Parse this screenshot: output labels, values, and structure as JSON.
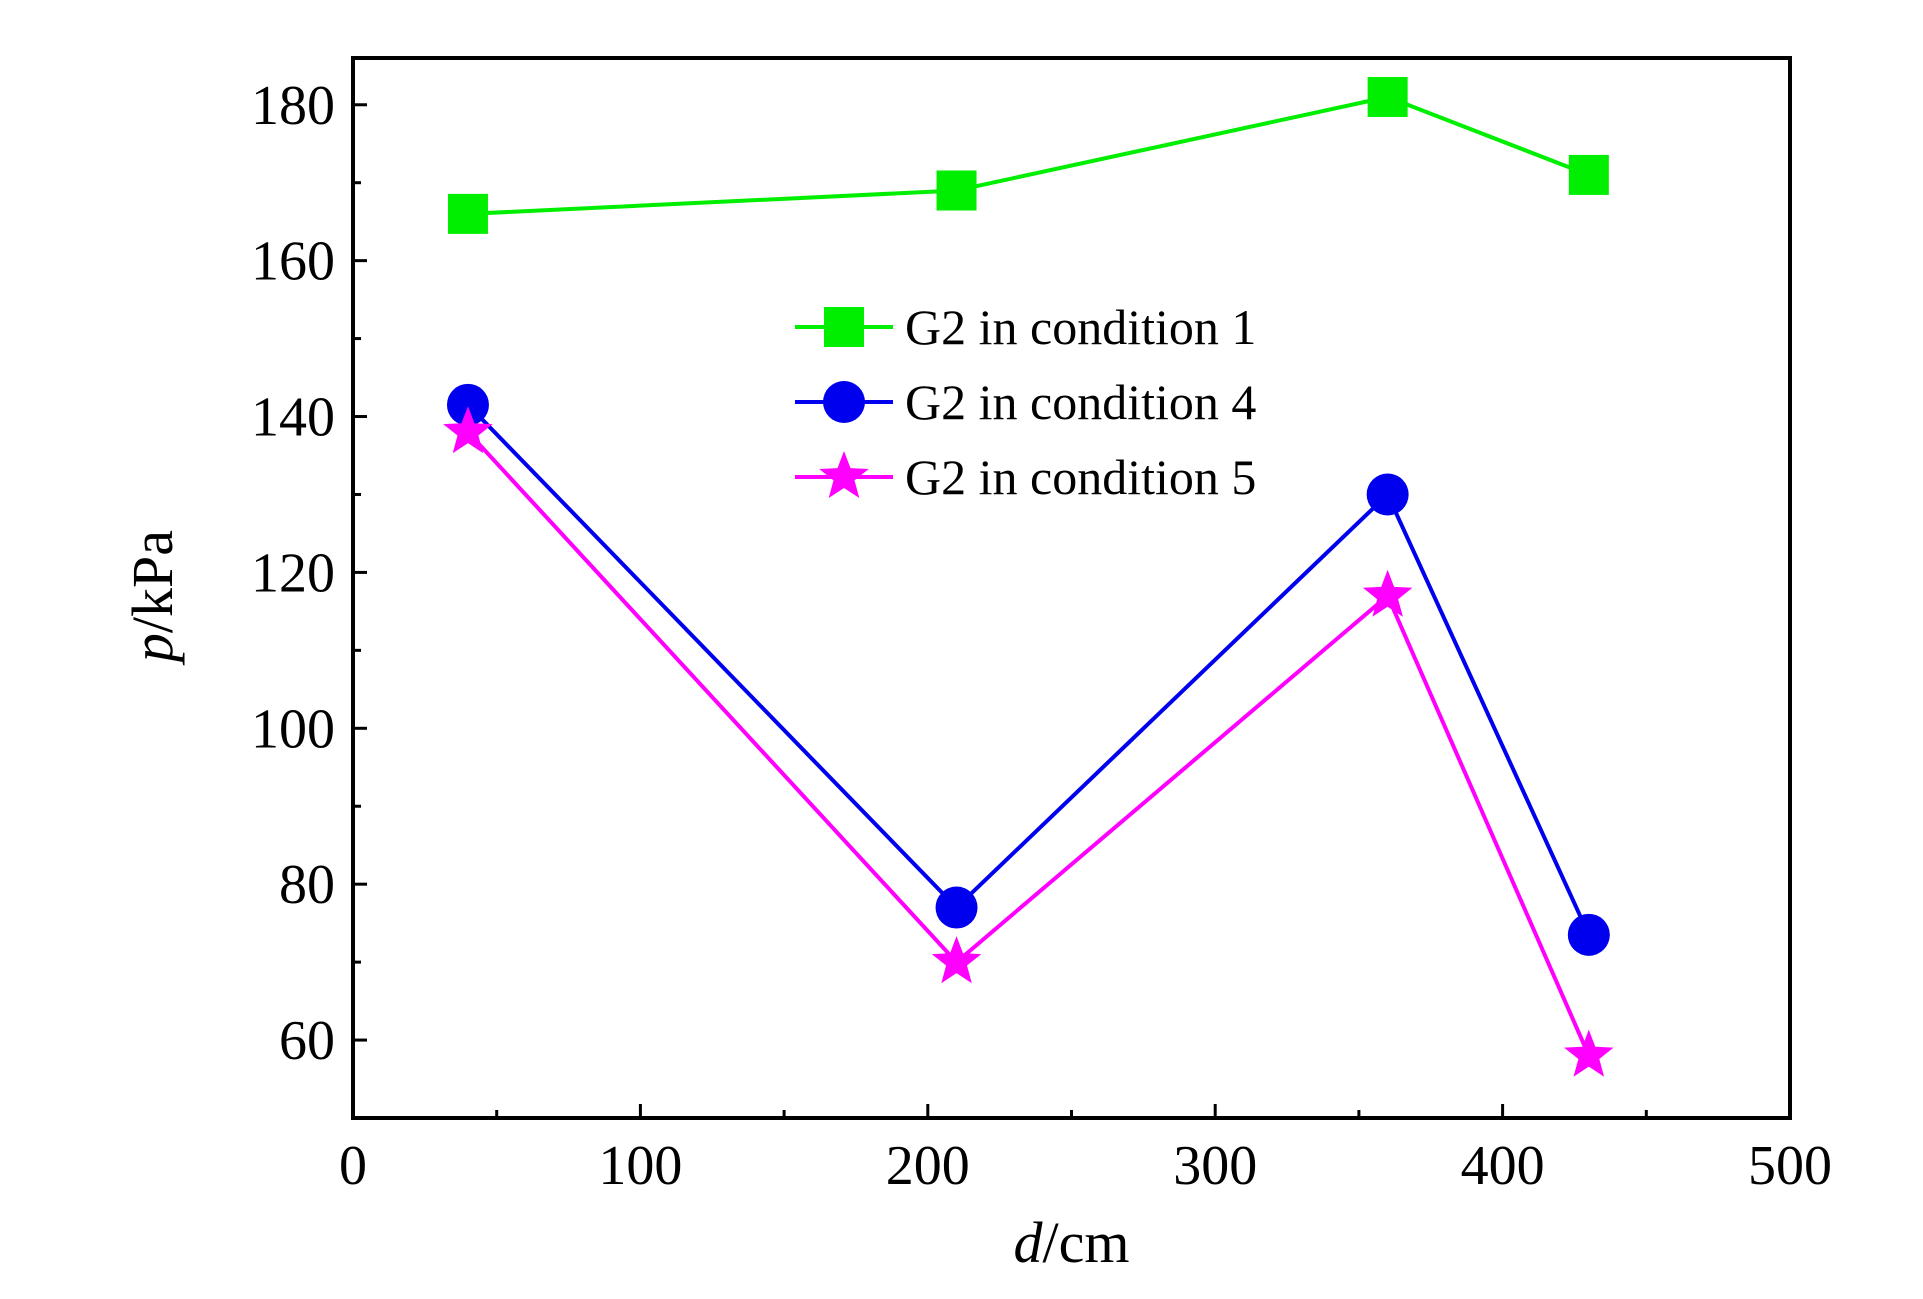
{
  "chart_data": {
    "type": "line",
    "xlabel": {
      "italic": "d",
      "rest": "/cm"
    },
    "ylabel": {
      "italic": "p",
      "rest": "/kPa"
    },
    "xlim": [
      0,
      500
    ],
    "ylim": [
      50,
      186
    ],
    "xticks": [
      0,
      100,
      200,
      300,
      400,
      500
    ],
    "yticks": [
      60,
      80,
      100,
      120,
      140,
      160,
      180
    ],
    "grid": false,
    "legend_position": "top-center",
    "series": [
      {
        "name": "G2 in condition 1",
        "color": "#00ee00",
        "marker": "square",
        "x": [
          40,
          210,
          360,
          430
        ],
        "y": [
          166,
          169,
          181,
          171
        ]
      },
      {
        "name": "G2 in condition 4",
        "color": "#0000ee",
        "marker": "circle",
        "x": [
          40,
          210,
          360,
          430
        ],
        "y": [
          141.5,
          77,
          130,
          73.5
        ]
      },
      {
        "name": "G2 in condition 5",
        "color": "#ff00ff",
        "marker": "star",
        "x": [
          40,
          210,
          360,
          430
        ],
        "y": [
          138,
          70,
          117,
          58
        ]
      }
    ]
  }
}
